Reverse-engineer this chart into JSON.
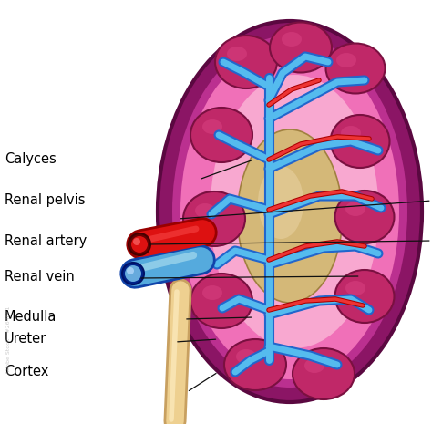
{
  "bg_color": "#ffffff",
  "kidney_outer_color": "#8B1565",
  "kidney_outer_edge": "#5A0840",
  "kidney_inner_color": "#F070B8",
  "kidney_inner_edge": "#8B1565",
  "medulla_color": "#F8A8D0",
  "pelvis_color": "#D4B878",
  "pelvis_edge": "#A08040",
  "calyx_color": "#C02868",
  "calyx_edge": "#7A1040",
  "calyx_highlight": "#D84080",
  "artery_outer": "#990000",
  "artery_inner": "#DD1111",
  "artery_highlight": "#FF5555",
  "artery_dark_end": "#660000",
  "vein_outer": "#1144AA",
  "vein_inner": "#55AADD",
  "vein_highlight": "#AADDEE",
  "vein_dark_end": "#002288",
  "vessel_blue_out": "#2266CC",
  "vessel_blue_in": "#55BBEE",
  "vessel_red_out": "#AA0000",
  "vessel_red_in": "#EE3333",
  "ureter_outer": "#C8A060",
  "ureter_inner": "#EED090",
  "line_color": "#111111",
  "text_color": "#000000",
  "text_size": 10.5,
  "labels": [
    [
      "Calyces",
      5,
      175,
      218,
      197
    ],
    [
      "Renal pelvis",
      5,
      220,
      195,
      240
    ],
    [
      "Renal artery",
      5,
      264,
      162,
      268
    ],
    [
      "Renal vein",
      5,
      303,
      152,
      305
    ],
    [
      "Medulla",
      5,
      348,
      202,
      350
    ],
    [
      "Ureter",
      5,
      372,
      192,
      375
    ],
    [
      "Cortex",
      5,
      408,
      205,
      430
    ]
  ]
}
